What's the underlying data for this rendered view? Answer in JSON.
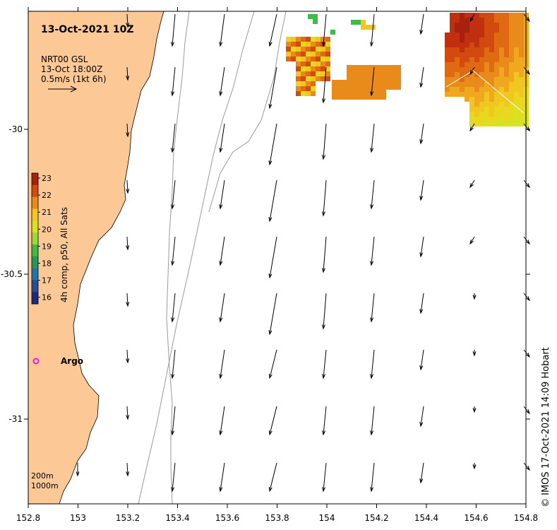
{
  "map": {
    "title": "13-Oct-2021 10Z",
    "legend_lines": [
      "NRT00 GSL",
      "13-Oct 18:00Z",
      "0.5m/s (1kt 6h)"
    ],
    "colorbar_label": "4h comp, p50, All Sats",
    "colorbar_ticks": [
      "23",
      "22",
      "21",
      "20",
      "19",
      "18",
      "17",
      "16"
    ],
    "colorbar_colors": [
      "#a8200e",
      "#d24a0e",
      "#e98b1b",
      "#f0c61f",
      "#d9e21f",
      "#9fd63a",
      "#3fbb49",
      "#1f9a5e",
      "#1e76b0",
      "#254d9e",
      "#1c2a82"
    ],
    "x_ticks": [
      "152.8",
      "153",
      "153.2",
      "153.4",
      "153.6",
      "153.8",
      "154",
      "154.2",
      "154.4",
      "154.6",
      "154.8"
    ],
    "y_ticks": [
      "-30",
      "-30.5",
      "-31"
    ],
    "argo_label": "Argo",
    "depth_labels": [
      "200m",
      "1000m"
    ],
    "credit": "© IMOS 17-Oct-2021 14:09 Hobart",
    "land_color": "#fbc896",
    "argo_color": "#e020e0"
  }
}
